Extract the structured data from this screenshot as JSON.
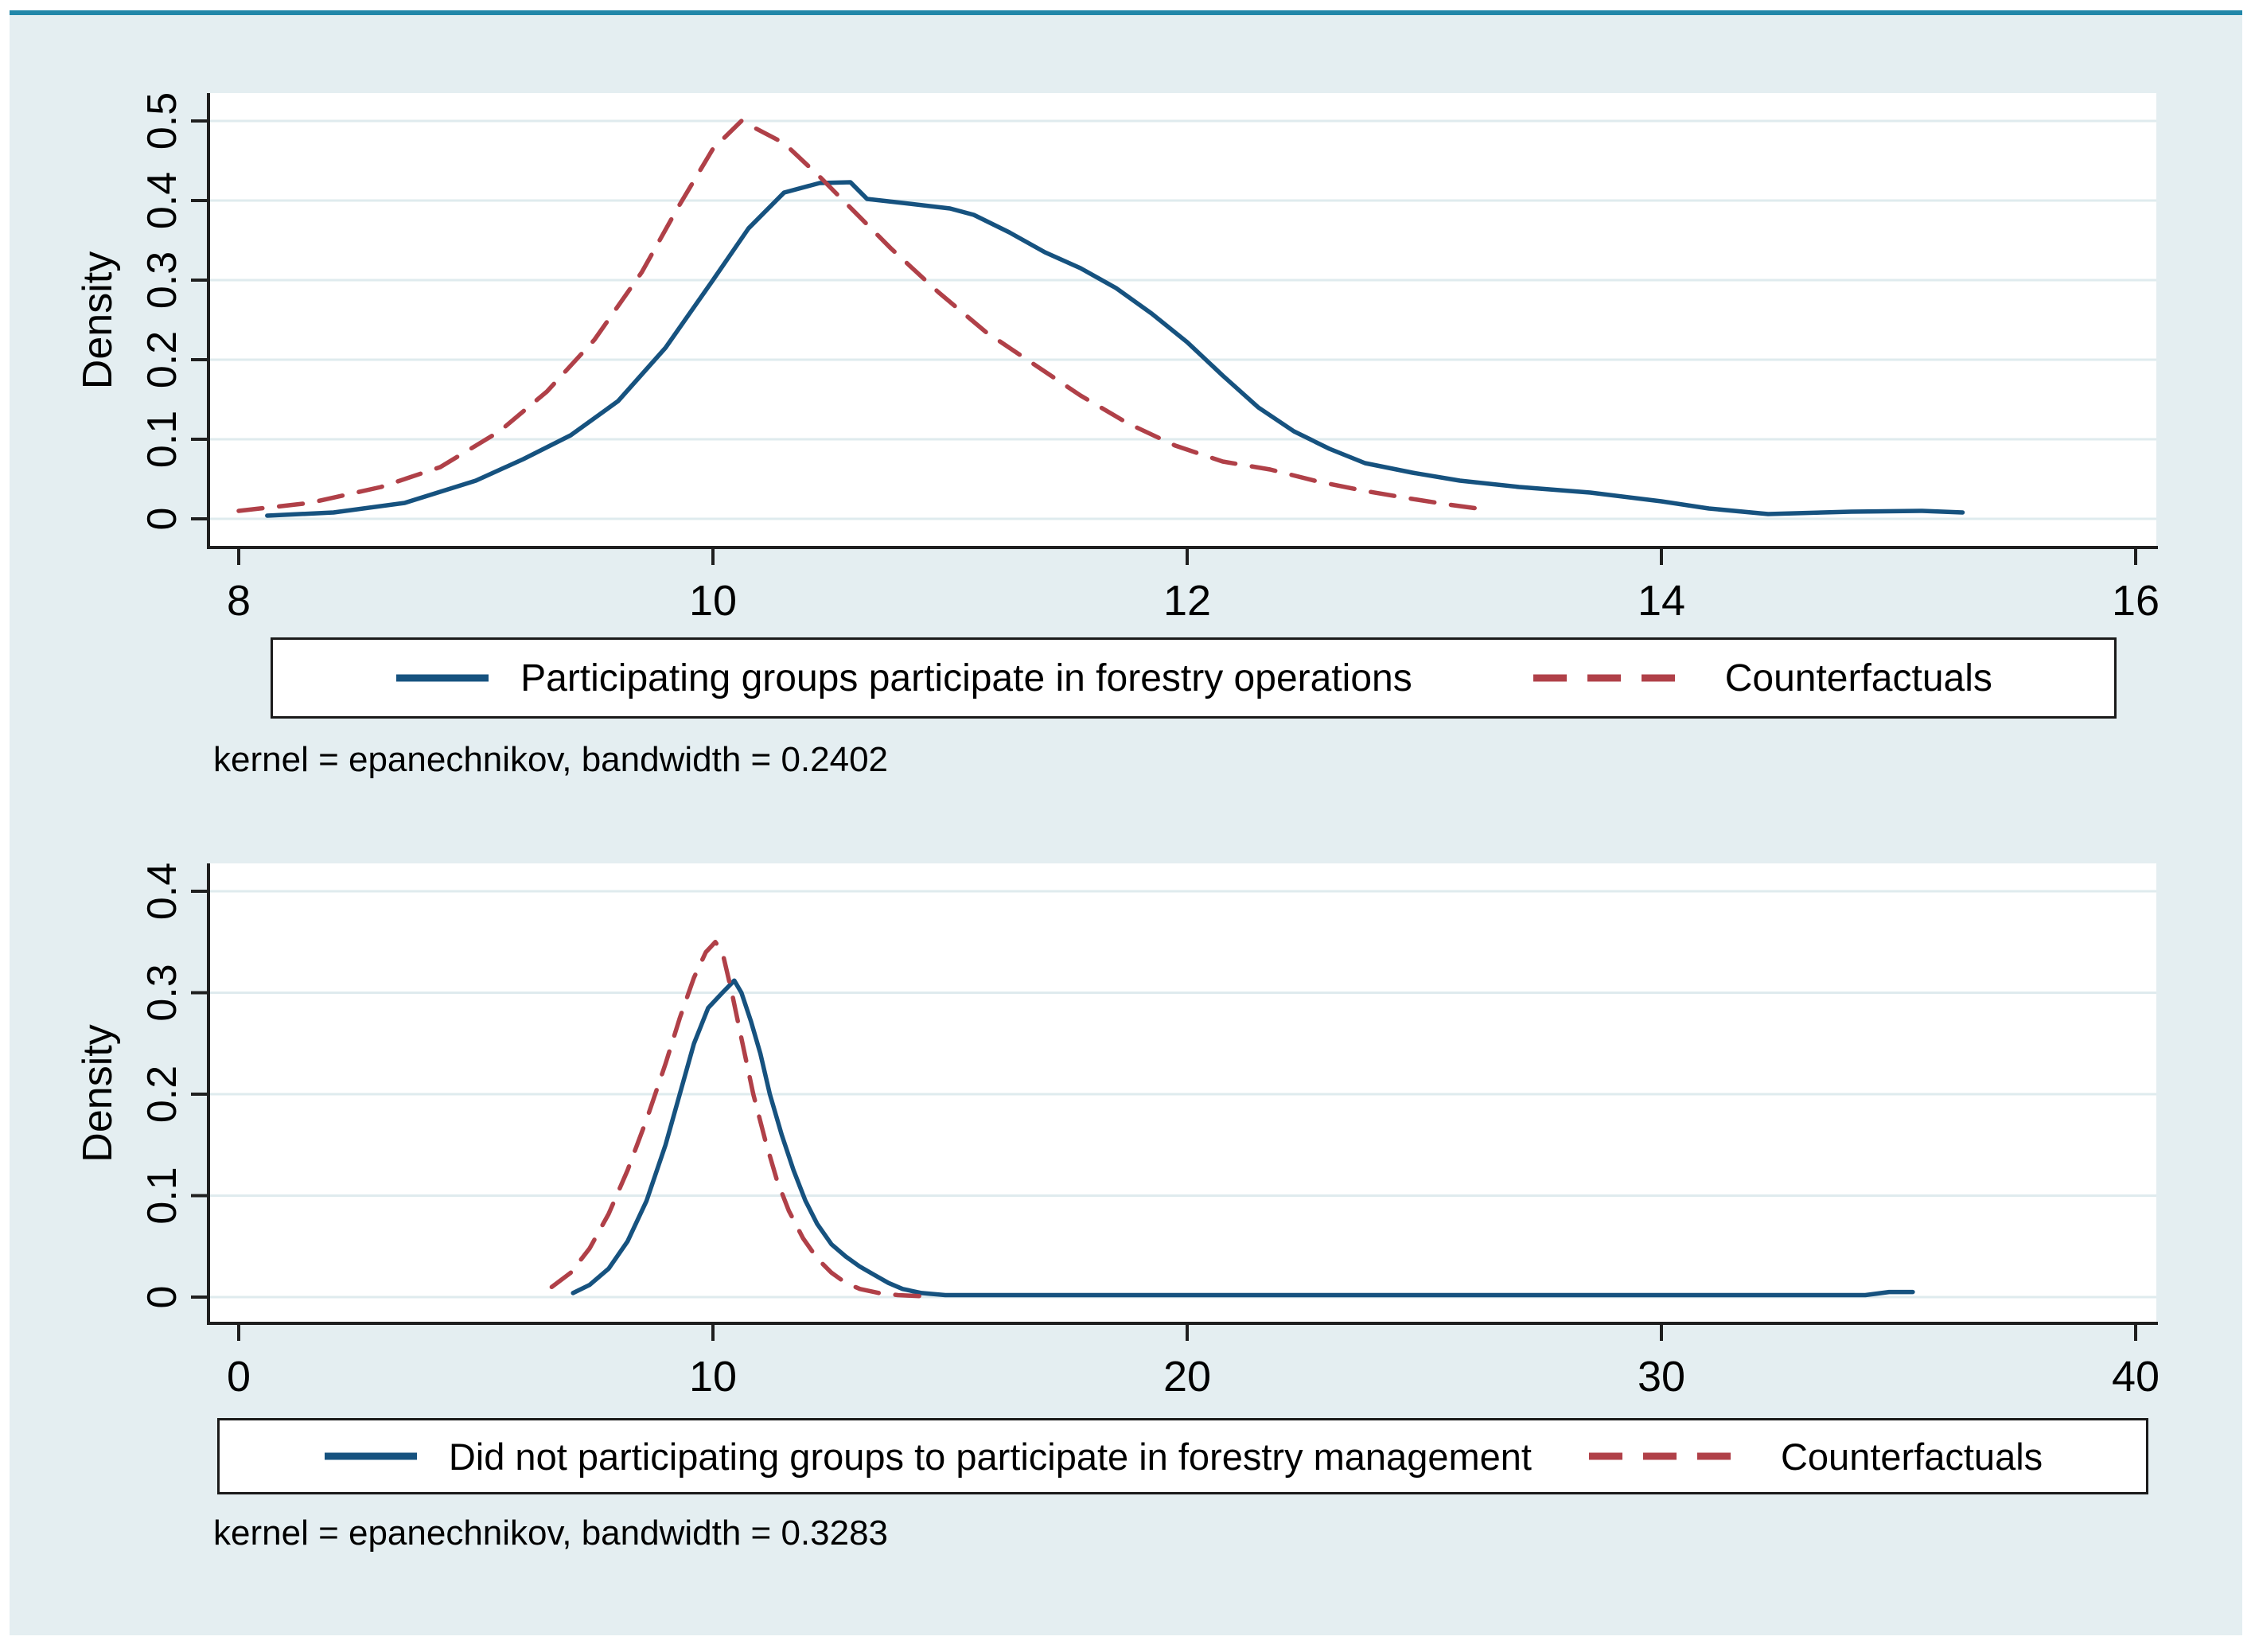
{
  "colors": {
    "navy": "#16527f",
    "red": "#b04048",
    "teal": "#2187a9",
    "canvas": "#e4eef1",
    "grid": "#dfebee",
    "axis": "#1f1f1f"
  },
  "chart_data": [
    {
      "type": "line",
      "title": "",
      "ylabel": "Density",
      "xlabel": "",
      "note": "kernel = epanechnikov, bandwidth = 0.2402",
      "xlim": [
        8,
        16
      ],
      "ylim": [
        0,
        0.535
      ],
      "x_ticks": [
        8,
        10,
        12,
        14,
        16
      ],
      "y_ticks": [
        0,
        0.1,
        0.2,
        0.3,
        0.4,
        0.5
      ],
      "grid": true,
      "legend_position": "below-center-boxed",
      "series": [
        {
          "name": "Participating groups participate in forestry operations",
          "style": "solid",
          "color_key": "navy",
          "points": [
            [
              8.12,
              0.004
            ],
            [
              8.4,
              0.008
            ],
            [
              8.7,
              0.02
            ],
            [
              9.0,
              0.048
            ],
            [
              9.2,
              0.075
            ],
            [
              9.4,
              0.105
            ],
            [
              9.6,
              0.148
            ],
            [
              9.8,
              0.215
            ],
            [
              10.0,
              0.3
            ],
            [
              10.15,
              0.365
            ],
            [
              10.3,
              0.41
            ],
            [
              10.45,
              0.422
            ],
            [
              10.58,
              0.423
            ],
            [
              10.65,
              0.402
            ],
            [
              10.8,
              0.397
            ],
            [
              11.0,
              0.39
            ],
            [
              11.1,
              0.382
            ],
            [
              11.25,
              0.36
            ],
            [
              11.4,
              0.335
            ],
            [
              11.55,
              0.315
            ],
            [
              11.7,
              0.29
            ],
            [
              11.85,
              0.258
            ],
            [
              12.0,
              0.222
            ],
            [
              12.15,
              0.18
            ],
            [
              12.3,
              0.14
            ],
            [
              12.45,
              0.11
            ],
            [
              12.6,
              0.088
            ],
            [
              12.75,
              0.07
            ],
            [
              12.95,
              0.058
            ],
            [
              13.15,
              0.048
            ],
            [
              13.4,
              0.04
            ],
            [
              13.7,
              0.033
            ],
            [
              14.0,
              0.022
            ],
            [
              14.2,
              0.013
            ],
            [
              14.45,
              0.006
            ],
            [
              14.8,
              0.009
            ],
            [
              15.1,
              0.01
            ],
            [
              15.27,
              0.008
            ]
          ]
        },
        {
          "name": "Counterfactuals",
          "style": "dashed",
          "color_key": "red",
          "points": [
            [
              8.0,
              0.01
            ],
            [
              8.3,
              0.02
            ],
            [
              8.6,
              0.04
            ],
            [
              8.85,
              0.065
            ],
            [
              9.1,
              0.11
            ],
            [
              9.3,
              0.16
            ],
            [
              9.5,
              0.225
            ],
            [
              9.7,
              0.31
            ],
            [
              9.85,
              0.39
            ],
            [
              10.0,
              0.465
            ],
            [
              10.12,
              0.5
            ],
            [
              10.3,
              0.472
            ],
            [
              10.45,
              0.43
            ],
            [
              10.6,
              0.385
            ],
            [
              10.75,
              0.34
            ],
            [
              10.95,
              0.285
            ],
            [
              11.15,
              0.235
            ],
            [
              11.35,
              0.195
            ],
            [
              11.55,
              0.155
            ],
            [
              11.75,
              0.12
            ],
            [
              11.95,
              0.092
            ],
            [
              12.15,
              0.072
            ],
            [
              12.35,
              0.062
            ],
            [
              12.55,
              0.047
            ],
            [
              12.75,
              0.035
            ],
            [
              12.95,
              0.025
            ],
            [
              13.1,
              0.018
            ],
            [
              13.25,
              0.012
            ]
          ]
        }
      ]
    },
    {
      "type": "line",
      "title": "",
      "ylabel": "Density",
      "xlabel": "",
      "note": "kernel = epanechnikov, bandwidth = 0.3283",
      "xlim": [
        0,
        40
      ],
      "ylim": [
        0,
        0.427
      ],
      "x_ticks": [
        0,
        10,
        20,
        30,
        40
      ],
      "y_ticks": [
        0,
        0.1,
        0.2,
        0.3,
        0.4
      ],
      "grid": true,
      "legend_position": "below-center-boxed",
      "series": [
        {
          "name": "Did not participating groups to participate in forestry management",
          "style": "solid",
          "color_key": "navy",
          "points": [
            [
              7.05,
              0.004
            ],
            [
              7.4,
              0.012
            ],
            [
              7.8,
              0.028
            ],
            [
              8.2,
              0.055
            ],
            [
              8.6,
              0.095
            ],
            [
              9.0,
              0.15
            ],
            [
              9.3,
              0.2
            ],
            [
              9.6,
              0.25
            ],
            [
              9.9,
              0.285
            ],
            [
              10.2,
              0.3
            ],
            [
              10.45,
              0.312
            ],
            [
              10.6,
              0.3
            ],
            [
              10.8,
              0.272
            ],
            [
              11.0,
              0.24
            ],
            [
              11.2,
              0.2
            ],
            [
              11.45,
              0.16
            ],
            [
              11.7,
              0.125
            ],
            [
              11.95,
              0.095
            ],
            [
              12.2,
              0.072
            ],
            [
              12.5,
              0.052
            ],
            [
              12.8,
              0.04
            ],
            [
              13.1,
              0.03
            ],
            [
              13.4,
              0.022
            ],
            [
              13.7,
              0.014
            ],
            [
              14.0,
              0.008
            ],
            [
              14.4,
              0.004
            ],
            [
              14.9,
              0.002
            ],
            [
              16.0,
              0.002
            ],
            [
              20.0,
              0.002
            ],
            [
              25.0,
              0.002
            ],
            [
              30.0,
              0.002
            ],
            [
              33.0,
              0.002
            ],
            [
              34.3,
              0.002
            ],
            [
              34.8,
              0.005
            ],
            [
              35.3,
              0.005
            ]
          ]
        },
        {
          "name": "Counterfactuals",
          "style": "dashed",
          "color_key": "red",
          "points": [
            [
              6.6,
              0.01
            ],
            [
              7.0,
              0.024
            ],
            [
              7.4,
              0.048
            ],
            [
              7.8,
              0.082
            ],
            [
              8.2,
              0.125
            ],
            [
              8.6,
              0.175
            ],
            [
              9.0,
              0.23
            ],
            [
              9.3,
              0.275
            ],
            [
              9.6,
              0.315
            ],
            [
              9.85,
              0.34
            ],
            [
              10.05,
              0.35
            ],
            [
              10.2,
              0.34
            ],
            [
              10.4,
              0.3
            ],
            [
              10.6,
              0.255
            ],
            [
              10.85,
              0.2
            ],
            [
              11.1,
              0.155
            ],
            [
              11.35,
              0.115
            ],
            [
              11.6,
              0.085
            ],
            [
              11.9,
              0.058
            ],
            [
              12.2,
              0.038
            ],
            [
              12.5,
              0.024
            ],
            [
              12.8,
              0.014
            ],
            [
              13.1,
              0.008
            ],
            [
              13.5,
              0.004
            ],
            [
              13.9,
              0.002
            ],
            [
              14.35,
              0.001
            ]
          ]
        }
      ]
    }
  ]
}
